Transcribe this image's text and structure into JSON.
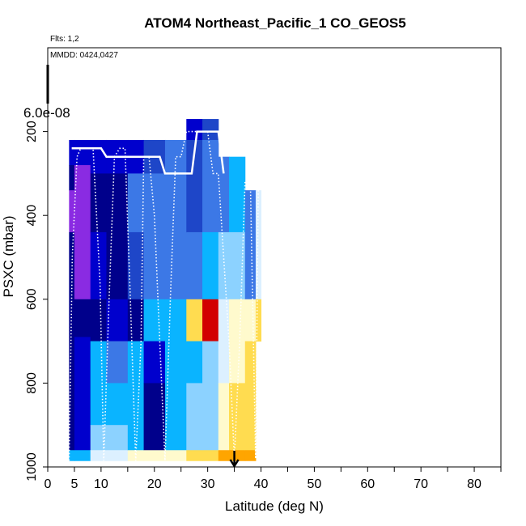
{
  "chart_data": {
    "type": "heatmap",
    "title": "ATOM4 Northeast_Pacific_1 CO_GEOS5",
    "flights_label": "Flts: 1,2",
    "dates_label": "MMDD: 0424,0427",
    "xlabel": "Latitude (deg N)",
    "ylabel": "PSXC (mbar)",
    "xlim": [
      0,
      85
    ],
    "ylim": [
      1000,
      0
    ],
    "x_ticks": [
      0,
      5,
      10,
      20,
      30,
      40,
      50,
      60,
      70,
      80
    ],
    "y_ticks": [
      200,
      400,
      600,
      800,
      1000
    ],
    "colorbar_label": "6.0e-08",
    "arrow_marker": {
      "lat": 35,
      "pressure": 1000
    },
    "colors": {
      "v1": "#8a2be2",
      "v2": "#00008b",
      "v3": "#0000cd",
      "v4": "#1e46c8",
      "v5": "#3c78e6",
      "v6": "#0ab4ff",
      "v7": "#8cd2ff",
      "v8": "#dcf0ff",
      "v9": "#fffacd",
      "v10": "#ffdc50",
      "v11": "#ffa500",
      "v12": "#ff6400",
      "v13": "#d20000"
    },
    "columns": [
      {
        "lat": [
          4,
          5
        ],
        "levels": [
          {
            "p": [
              220,
              280
            ],
            "v": 3
          },
          {
            "p": [
              280,
              340
            ],
            "v": 2
          },
          {
            "p": [
              340,
              440
            ],
            "v": 1
          },
          {
            "p": [
              440,
              960
            ],
            "v": 2
          },
          {
            "p": [
              960,
              985
            ],
            "v": 6
          }
        ]
      },
      {
        "lat": [
          5,
          8
        ],
        "levels": [
          {
            "p": [
              220,
              280
            ],
            "v": 3
          },
          {
            "p": [
              280,
              440
            ],
            "v": 1
          },
          {
            "p": [
              440,
              600
            ],
            "v": 1
          },
          {
            "p": [
              600,
              690
            ],
            "v": 2
          },
          {
            "p": [
              690,
              960
            ],
            "v": 3
          },
          {
            "p": [
              960,
              985
            ],
            "v": 6
          }
        ]
      },
      {
        "lat": [
          8,
          11
        ],
        "levels": [
          {
            "p": [
              220,
              300
            ],
            "v": 3
          },
          {
            "p": [
              300,
              440
            ],
            "v": 2
          },
          {
            "p": [
              440,
              600
            ],
            "v": 3
          },
          {
            "p": [
              600,
              700
            ],
            "v": 2
          },
          {
            "p": [
              700,
              900
            ],
            "v": 6
          },
          {
            "p": [
              900,
              960
            ],
            "v": 7
          },
          {
            "p": [
              960,
              985
            ],
            "v": 8
          }
        ]
      },
      {
        "lat": [
          11,
          15
        ],
        "levels": [
          {
            "p": [
              220,
              300
            ],
            "v": 3
          },
          {
            "p": [
              300,
              600
            ],
            "v": 2
          },
          {
            "p": [
              600,
              700
            ],
            "v": 3
          },
          {
            "p": [
              700,
              800
            ],
            "v": 5
          },
          {
            "p": [
              800,
              900
            ],
            "v": 6
          },
          {
            "p": [
              900,
              960
            ],
            "v": 7
          },
          {
            "p": [
              960,
              985
            ],
            "v": 8
          }
        ]
      },
      {
        "lat": [
          15,
          18
        ],
        "levels": [
          {
            "p": [
              220,
              300
            ],
            "v": 3
          },
          {
            "p": [
              300,
              440
            ],
            "v": 5
          },
          {
            "p": [
              440,
              600
            ],
            "v": 4
          },
          {
            "p": [
              600,
              700
            ],
            "v": 2
          },
          {
            "p": [
              700,
              800
            ],
            "v": 6
          },
          {
            "p": [
              800,
              960
            ],
            "v": 6
          },
          {
            "p": [
              960,
              985
            ],
            "v": 9
          }
        ]
      },
      {
        "lat": [
          18,
          22
        ],
        "levels": [
          {
            "p": [
              220,
              300
            ],
            "v": 4
          },
          {
            "p": [
              300,
              440
            ],
            "v": 5
          },
          {
            "p": [
              440,
              600
            ],
            "v": 5
          },
          {
            "p": [
              600,
              700
            ],
            "v": 6
          },
          {
            "p": [
              700,
              800
            ],
            "v": 3
          },
          {
            "p": [
              800,
              960
            ],
            "v": 2
          },
          {
            "p": [
              960,
              985
            ],
            "v": 9
          }
        ]
      },
      {
        "lat": [
          22,
          26
        ],
        "levels": [
          {
            "p": [
              220,
              300
            ],
            "v": 5
          },
          {
            "p": [
              300,
              440
            ],
            "v": 5
          },
          {
            "p": [
              440,
              600
            ],
            "v": 5
          },
          {
            "p": [
              600,
              700
            ],
            "v": 6
          },
          {
            "p": [
              700,
              800
            ],
            "v": 6
          },
          {
            "p": [
              800,
              960
            ],
            "v": 6
          },
          {
            "p": [
              960,
              985
            ],
            "v": 9
          }
        ]
      },
      {
        "lat": [
          26,
          29
        ],
        "levels": [
          {
            "p": [
              170,
              220
            ],
            "v": 3
          },
          {
            "p": [
              220,
              440
            ],
            "v": 4
          },
          {
            "p": [
              440,
              600
            ],
            "v": 5
          },
          {
            "p": [
              600,
              700
            ],
            "v": 10
          },
          {
            "p": [
              700,
              800
            ],
            "v": 6
          },
          {
            "p": [
              800,
              960
            ],
            "v": 7
          },
          {
            "p": [
              960,
              985
            ],
            "v": 10
          }
        ]
      },
      {
        "lat": [
          29,
          32
        ],
        "levels": [
          {
            "p": [
              170,
              220
            ],
            "v": 4
          },
          {
            "p": [
              220,
              440
            ],
            "v": 5
          },
          {
            "p": [
              440,
              600
            ],
            "v": 6
          },
          {
            "p": [
              600,
              700
            ],
            "v": 13
          },
          {
            "p": [
              700,
              800
            ],
            "v": 7
          },
          {
            "p": [
              800,
              960
            ],
            "v": 7
          },
          {
            "p": [
              960,
              985
            ],
            "v": 10
          }
        ]
      },
      {
        "lat": [
          32,
          34
        ],
        "levels": [
          {
            "p": [
              260,
              440
            ],
            "v": 5
          },
          {
            "p": [
              440,
              600
            ],
            "v": 7
          },
          {
            "p": [
              600,
              700
            ],
            "v": 8
          },
          {
            "p": [
              700,
              800
            ],
            "v": 8
          },
          {
            "p": [
              800,
              960
            ],
            "v": 9
          },
          {
            "p": [
              960,
              985
            ],
            "v": 11
          }
        ]
      },
      {
        "lat": [
          34,
          37
        ],
        "levels": [
          {
            "p": [
              260,
              440
            ],
            "v": 6
          },
          {
            "p": [
              440,
              600
            ],
            "v": 7
          },
          {
            "p": [
              600,
              700
            ],
            "v": 9
          },
          {
            "p": [
              700,
              800
            ],
            "v": 9
          },
          {
            "p": [
              800,
              960
            ],
            "v": 10
          },
          {
            "p": [
              960,
              985
            ],
            "v": 11
          }
        ]
      },
      {
        "lat": [
          37,
          39
        ],
        "levels": [
          {
            "p": [
              340,
              600
            ],
            "v": 5
          },
          {
            "p": [
              600,
              700
            ],
            "v": 9
          },
          {
            "p": [
              700,
              960
            ],
            "v": 10
          },
          {
            "p": [
              960,
              985
            ],
            "v": 11
          }
        ]
      },
      {
        "lat": [
          39,
          40
        ],
        "levels": [
          {
            "p": [
              340,
              600
            ],
            "v": 8
          },
          {
            "p": [
              600,
              700
            ],
            "v": 10
          }
        ]
      }
    ],
    "series": [
      {
        "style": "dotted",
        "x": [
          4,
          4.6,
          5.5,
          6.2,
          7,
          8.5,
          9.8,
          10.5,
          11.5,
          12.5,
          13.5,
          14.5,
          15.5,
          16.5,
          17.5,
          18,
          19,
          20,
          21,
          22,
          23,
          24,
          25,
          26,
          27,
          28,
          29,
          30,
          31,
          32,
          33,
          34,
          35,
          36,
          37,
          38,
          39,
          39.5
        ],
        "y": [
          985,
          500,
          260,
          240,
          240,
          240,
          560,
          985,
          600,
          260,
          240,
          240,
          600,
          985,
          700,
          260,
          260,
          400,
          700,
          985,
          600,
          260,
          260,
          200,
          200,
          200,
          200,
          200,
          300,
          300,
          500,
          700,
          980,
          700,
          320,
          320,
          980,
          320
        ]
      },
      {
        "style": "solid",
        "x": [
          4.5,
          5.5,
          7,
          8.5,
          10,
          11,
          14,
          17,
          20,
          21,
          22,
          23,
          24,
          26,
          27,
          28,
          29,
          30,
          32,
          33
        ],
        "y": [
          240,
          240,
          240,
          240,
          240,
          260,
          260,
          260,
          260,
          260,
          300,
          300,
          300,
          300,
          300,
          200,
          200,
          200,
          200,
          300
        ]
      }
    ]
  }
}
